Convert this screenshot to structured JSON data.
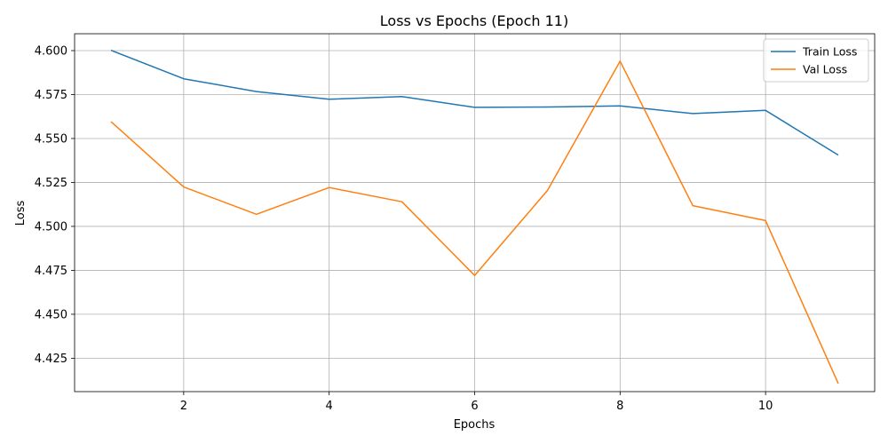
{
  "chart_data": {
    "type": "line",
    "title": "Loss vs Epochs (Epoch 11)",
    "xlabel": "Epochs",
    "ylabel": "Loss",
    "x": [
      1,
      2,
      3,
      4,
      5,
      6,
      7,
      8,
      9,
      10,
      11
    ],
    "series": [
      {
        "name": "Train Loss",
        "color": "#1f77b4",
        "values": [
          4.6002,
          4.584,
          4.5767,
          4.5723,
          4.5739,
          4.5677,
          4.5679,
          4.5686,
          4.5642,
          4.566,
          4.5406
        ]
      },
      {
        "name": "Val Loss",
        "color": "#ff7f0e",
        "values": [
          4.5596,
          4.5224,
          4.5069,
          4.5221,
          4.514,
          4.4721,
          4.5204,
          4.594,
          4.5118,
          4.5033,
          4.4106
        ]
      }
    ],
    "xlim": [
      0.5,
      11.5
    ],
    "ylim": [
      4.406,
      4.6096
    ],
    "xticks": [
      2,
      4,
      6,
      8,
      10
    ],
    "xtick_labels": [
      "2",
      "4",
      "6",
      "8",
      "10"
    ],
    "yticks": [
      4.425,
      4.45,
      4.475,
      4.5,
      4.525,
      4.55,
      4.575,
      4.6
    ],
    "ytick_labels": [
      "4.425",
      "4.450",
      "4.475",
      "4.500",
      "4.525",
      "4.550",
      "4.575",
      "4.600"
    ],
    "grid": true,
    "legend_position": "top-right"
  }
}
